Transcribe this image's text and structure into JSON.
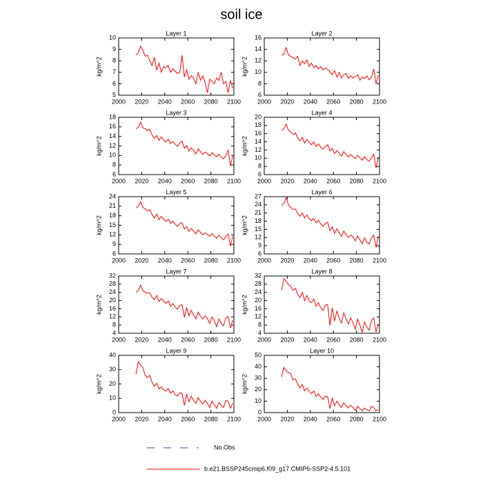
{
  "title": "soil ice",
  "legend": [
    {
      "name": "No Obs",
      "color": "#3b3b8f",
      "dashed": true
    },
    {
      "name": "b.e21.BSSP245cmip6.f09_g17.CMIP6-SSP2-4.5.101",
      "color": "#ff0000",
      "dashed": false
    }
  ],
  "chart_data": [
    {
      "type": "line",
      "title": "Layer 1",
      "y_label": "kg/m^2",
      "color": "#ff0000",
      "x": [
        2015,
        2017,
        2019,
        2021,
        2023,
        2025,
        2027,
        2029,
        2031,
        2033,
        2035,
        2037,
        2039,
        2041,
        2043,
        2045,
        2047,
        2049,
        2051,
        2053,
        2055,
        2057,
        2059,
        2061,
        2063,
        2065,
        2067,
        2069,
        2071,
        2073,
        2075,
        2077,
        2079,
        2081,
        2083,
        2085,
        2087,
        2089,
        2091,
        2093,
        2095,
        2097,
        2099
      ],
      "values": [
        8.5,
        8.7,
        9.3,
        8.9,
        8.4,
        8.5,
        8.0,
        7.6,
        8.3,
        7.2,
        7.8,
        7.0,
        7.5,
        7.4,
        7.6,
        7.0,
        7.3,
        7.1,
        6.9,
        7.0,
        8.5,
        6.6,
        7.2,
        6.4,
        6.7,
        6.5,
        6.0,
        7.0,
        6.3,
        6.7,
        6.1,
        5.2,
        6.4,
        6.2,
        6.0,
        6.5,
        6.3,
        7.0,
        6.0,
        6.2,
        5.2,
        6.3,
        5.6
      ],
      "xlim": [
        2000,
        2100
      ],
      "xticks": [
        2000,
        2020,
        2040,
        2060,
        2080,
        2100
      ],
      "ylim": [
        5,
        10
      ],
      "yticks": [
        5,
        6,
        7,
        8,
        9,
        10
      ]
    },
    {
      "type": "line",
      "title": "Layer 2",
      "y_label": "kg/m^2",
      "color": "#ff0000",
      "x": [
        2015,
        2017,
        2019,
        2021,
        2023,
        2025,
        2027,
        2029,
        2031,
        2033,
        2035,
        2037,
        2039,
        2041,
        2043,
        2045,
        2047,
        2049,
        2051,
        2053,
        2055,
        2057,
        2059,
        2061,
        2063,
        2065,
        2067,
        2069,
        2071,
        2073,
        2075,
        2077,
        2079,
        2081,
        2083,
        2085,
        2087,
        2089,
        2091,
        2093,
        2095,
        2097,
        2099
      ],
      "values": [
        13.0,
        13.2,
        14.3,
        13.0,
        12.8,
        12.5,
        12.3,
        12.8,
        11.2,
        12.0,
        11.5,
        12.2,
        11.0,
        11.6,
        10.8,
        11.2,
        10.6,
        11.0,
        10.4,
        10.8,
        10.5,
        10.1,
        9.6,
        10.3,
        9.2,
        10.0,
        9.0,
        9.6,
        9.8,
        8.9,
        9.4,
        9.0,
        9.3,
        9.6,
        8.6,
        9.2,
        8.9,
        9.4,
        8.7,
        9.1,
        10.6,
        8.0,
        9.5
      ],
      "xlim": [
        2000,
        2100
      ],
      "xticks": [
        2000,
        2020,
        2040,
        2060,
        2080,
        2100
      ],
      "ylim": [
        6,
        16
      ],
      "yticks": [
        6,
        8,
        10,
        12,
        14,
        16
      ]
    },
    {
      "type": "line",
      "title": "Layer 3",
      "y_label": "kg/m^2",
      "color": "#ff0000",
      "x": [
        2015,
        2017,
        2019,
        2021,
        2023,
        2025,
        2027,
        2029,
        2031,
        2033,
        2035,
        2037,
        2039,
        2041,
        2043,
        2045,
        2047,
        2049,
        2051,
        2053,
        2055,
        2057,
        2059,
        2061,
        2063,
        2065,
        2067,
        2069,
        2071,
        2073,
        2075,
        2077,
        2079,
        2081,
        2083,
        2085,
        2087,
        2089,
        2091,
        2093,
        2095,
        2097,
        2099
      ],
      "values": [
        15.6,
        15.9,
        17.0,
        15.8,
        15.6,
        15.2,
        15.5,
        14.3,
        13.6,
        14.2,
        13.2,
        13.9,
        13.3,
        12.8,
        13.4,
        12.5,
        12.9,
        12.4,
        11.9,
        12.6,
        13.0,
        11.5,
        12.1,
        10.9,
        11.6,
        11.1,
        10.3,
        11.4,
        10.8,
        10.2,
        10.7,
        10.4,
        9.9,
        10.6,
        10.1,
        9.7,
        10.3,
        9.6,
        9.3,
        9.9,
        11.2,
        7.8,
        10.0
      ],
      "xlim": [
        2000,
        2100
      ],
      "xticks": [
        2000,
        2020,
        2040,
        2060,
        2080,
        2100
      ],
      "ylim": [
        6,
        18
      ],
      "yticks": [
        6,
        8,
        10,
        12,
        14,
        16,
        18
      ]
    },
    {
      "type": "line",
      "title": "Layer 4",
      "y_label": "kg/m^2",
      "color": "#ff0000",
      "x": [
        2015,
        2017,
        2019,
        2021,
        2023,
        2025,
        2027,
        2029,
        2031,
        2033,
        2035,
        2037,
        2039,
        2041,
        2043,
        2045,
        2047,
        2049,
        2051,
        2053,
        2055,
        2057,
        2059,
        2061,
        2063,
        2065,
        2067,
        2069,
        2071,
        2073,
        2075,
        2077,
        2079,
        2081,
        2083,
        2085,
        2087,
        2089,
        2091,
        2093,
        2095,
        2097,
        2099
      ],
      "values": [
        16.8,
        17.2,
        18.3,
        16.8,
        16.4,
        15.8,
        16.2,
        15.0,
        14.2,
        15.1,
        13.7,
        14.6,
        13.9,
        13.3,
        14.0,
        12.9,
        13.5,
        12.7,
        12.2,
        12.9,
        13.3,
        11.8,
        12.4,
        11.1,
        11.9,
        11.2,
        10.5,
        11.6,
        10.9,
        10.3,
        10.9,
        10.4,
        9.9,
        10.7,
        10.1,
        9.5,
        10.4,
        9.7,
        9.2,
        10.1,
        11.0,
        7.6,
        10.3
      ],
      "xlim": [
        2000,
        2100
      ],
      "xticks": [
        2000,
        2020,
        2040,
        2060,
        2080,
        2100
      ],
      "ylim": [
        6,
        20
      ],
      "yticks": [
        6,
        8,
        10,
        12,
        14,
        16,
        18,
        20
      ]
    },
    {
      "type": "line",
      "title": "Layer 5",
      "y_label": "kg/m^2",
      "color": "#ff0000",
      "x": [
        2015,
        2017,
        2019,
        2021,
        2023,
        2025,
        2027,
        2029,
        2031,
        2033,
        2035,
        2037,
        2039,
        2041,
        2043,
        2045,
        2047,
        2049,
        2051,
        2053,
        2055,
        2057,
        2059,
        2061,
        2063,
        2065,
        2067,
        2069,
        2071,
        2073,
        2075,
        2077,
        2079,
        2081,
        2083,
        2085,
        2087,
        2089,
        2091,
        2093,
        2095,
        2097,
        2099
      ],
      "values": [
        20.5,
        21.0,
        22.4,
        20.6,
        20.2,
        19.5,
        19.9,
        18.4,
        17.3,
        18.5,
        16.8,
        17.8,
        16.9,
        16.2,
        16.9,
        15.6,
        16.3,
        15.4,
        14.7,
        15.5,
        15.8,
        13.8,
        14.6,
        13.1,
        14.0,
        13.2,
        12.3,
        13.6,
        12.8,
        12.0,
        12.6,
        12.1,
        11.5,
        12.4,
        11.6,
        10.9,
        11.9,
        11.0,
        10.4,
        11.4,
        12.3,
        8.4,
        11.6
      ],
      "xlim": [
        2000,
        2100
      ],
      "xticks": [
        2000,
        2020,
        2040,
        2060,
        2080,
        2100
      ],
      "ylim": [
        6,
        24
      ],
      "yticks": [
        6,
        9,
        12,
        15,
        18,
        21,
        24
      ]
    },
    {
      "type": "line",
      "title": "Layer 6",
      "y_label": "kg/m^2",
      "color": "#ff0000",
      "x": [
        2015,
        2017,
        2019,
        2021,
        2023,
        2025,
        2027,
        2029,
        2031,
        2033,
        2035,
        2037,
        2039,
        2041,
        2043,
        2045,
        2047,
        2049,
        2051,
        2053,
        2055,
        2057,
        2059,
        2061,
        2063,
        2065,
        2067,
        2069,
        2071,
        2073,
        2075,
        2077,
        2079,
        2081,
        2083,
        2085,
        2087,
        2089,
        2091,
        2093,
        2095,
        2097,
        2099
      ],
      "values": [
        23.8,
        24.5,
        26.6,
        24.0,
        23.0,
        22.3,
        22.5,
        20.8,
        19.8,
        21.0,
        19.2,
        20.3,
        18.9,
        18.2,
        19.0,
        17.4,
        18.4,
        17.0,
        16.1,
        17.2,
        17.6,
        14.5,
        16.0,
        13.6,
        15.2,
        13.8,
        12.4,
        14.4,
        13.1,
        12.0,
        12.9,
        12.2,
        10.8,
        12.6,
        11.2,
        9.7,
        11.9,
        10.3,
        9.6,
        11.8,
        12.9,
        8.4,
        12.5
      ],
      "xlim": [
        2000,
        2100
      ],
      "xticks": [
        2000,
        2020,
        2040,
        2060,
        2080,
        2100
      ],
      "ylim": [
        6,
        27
      ],
      "yticks": [
        6,
        9,
        12,
        15,
        18,
        21,
        24,
        27
      ]
    },
    {
      "type": "line",
      "title": "Layer 7",
      "y_label": "kg/m^2",
      "color": "#ff0000",
      "x": [
        2015,
        2017,
        2019,
        2021,
        2023,
        2025,
        2027,
        2029,
        2031,
        2033,
        2035,
        2037,
        2039,
        2041,
        2043,
        2045,
        2047,
        2049,
        2051,
        2053,
        2055,
        2057,
        2059,
        2061,
        2063,
        2065,
        2067,
        2069,
        2071,
        2073,
        2075,
        2077,
        2079,
        2081,
        2083,
        2085,
        2087,
        2089,
        2091,
        2093,
        2095,
        2097,
        2099
      ],
      "values": [
        24.0,
        25.0,
        27.5,
        24.8,
        24.0,
        23.5,
        23.8,
        21.5,
        20.5,
        22.5,
        19.5,
        21.0,
        19.8,
        18.6,
        19.8,
        17.2,
        18.5,
        16.8,
        15.8,
        17.6,
        18.0,
        11.8,
        16.5,
        12.5,
        15.2,
        13.0,
        11.0,
        14.3,
        12.4,
        11.0,
        12.5,
        11.2,
        8.8,
        12.0,
        10.2,
        7.2,
        11.0,
        9.0,
        7.6,
        11.5,
        12.2,
        6.5,
        10.5
      ],
      "xlim": [
        2000,
        2100
      ],
      "xticks": [
        2000,
        2020,
        2040,
        2060,
        2080,
        2100
      ],
      "ylim": [
        4,
        32
      ],
      "yticks": [
        4,
        8,
        12,
        16,
        20,
        24,
        28,
        32
      ]
    },
    {
      "type": "line",
      "title": "Layer 8",
      "y_label": "kg/m^2",
      "color": "#ff0000",
      "x": [
        2015,
        2017,
        2019,
        2021,
        2023,
        2025,
        2027,
        2029,
        2031,
        2033,
        2035,
        2037,
        2039,
        2041,
        2043,
        2045,
        2047,
        2049,
        2051,
        2053,
        2055,
        2057,
        2059,
        2061,
        2063,
        2065,
        2067,
        2069,
        2071,
        2073,
        2075,
        2077,
        2079,
        2081,
        2083,
        2085,
        2087,
        2089,
        2091,
        2093,
        2095,
        2097,
        2099
      ],
      "values": [
        25.0,
        30.8,
        29.5,
        27.8,
        27.0,
        25.0,
        26.0,
        23.0,
        21.5,
        24.0,
        20.0,
        22.5,
        19.8,
        19.0,
        20.8,
        17.2,
        19.0,
        16.5,
        15.0,
        17.8,
        18.0,
        7.8,
        16.5,
        10.0,
        14.8,
        11.5,
        9.0,
        14.0,
        11.0,
        8.5,
        11.5,
        9.2,
        6.0,
        11.0,
        8.0,
        4.5,
        9.5,
        7.0,
        5.5,
        10.0,
        11.5,
        4.5,
        8.5
      ],
      "xlim": [
        2000,
        2100
      ],
      "xticks": [
        2000,
        2020,
        2040,
        2060,
        2080,
        2100
      ],
      "ylim": [
        4,
        32
      ],
      "yticks": [
        4,
        8,
        12,
        16,
        20,
        24,
        28,
        32
      ]
    },
    {
      "type": "line",
      "title": "Layer 9",
      "y_label": "kg/m^2",
      "color": "#ff0000",
      "x": [
        2015,
        2017,
        2019,
        2021,
        2023,
        2025,
        2027,
        2029,
        2031,
        2033,
        2035,
        2037,
        2039,
        2041,
        2043,
        2045,
        2047,
        2049,
        2051,
        2053,
        2055,
        2057,
        2059,
        2061,
        2063,
        2065,
        2067,
        2069,
        2071,
        2073,
        2075,
        2077,
        2079,
        2081,
        2083,
        2085,
        2087,
        2089,
        2091,
        2093,
        2095,
        2097,
        2099
      ],
      "values": [
        27.0,
        35.5,
        33.0,
        31.5,
        26.0,
        24.5,
        26.0,
        21.0,
        18.5,
        20.5,
        16.5,
        18.0,
        16.0,
        15.0,
        16.8,
        13.5,
        15.2,
        12.5,
        11.5,
        14.0,
        13.5,
        5.0,
        13.0,
        7.5,
        11.5,
        8.5,
        6.5,
        10.5,
        8.0,
        6.0,
        8.5,
        6.5,
        3.5,
        8.0,
        5.5,
        3.0,
        7.0,
        5.0,
        3.5,
        8.5,
        8.0,
        3.0,
        6.5
      ],
      "xlim": [
        2000,
        2100
      ],
      "xticks": [
        2000,
        2020,
        2040,
        2060,
        2080,
        2100
      ],
      "ylim": [
        0,
        40
      ],
      "yticks": [
        0,
        10,
        20,
        30,
        40
      ]
    },
    {
      "type": "line",
      "title": "Layer 10",
      "y_label": "kg/m^2",
      "color": "#ff0000",
      "x": [
        2015,
        2017,
        2019,
        2021,
        2023,
        2025,
        2027,
        2029,
        2031,
        2033,
        2035,
        2037,
        2039,
        2041,
        2043,
        2045,
        2047,
        2049,
        2051,
        2053,
        2055,
        2057,
        2059,
        2061,
        2063,
        2065,
        2067,
        2069,
        2071,
        2073,
        2075,
        2077,
        2079,
        2081,
        2083,
        2085,
        2087,
        2089,
        2091,
        2093,
        2095,
        2097,
        2099
      ],
      "values": [
        31.0,
        39.5,
        36.5,
        35.0,
        34.0,
        28.5,
        29.5,
        25.0,
        21.5,
        24.5,
        19.0,
        21.5,
        18.5,
        16.5,
        19.0,
        14.0,
        16.5,
        13.5,
        11.5,
        14.5,
        14.0,
        3.5,
        12.5,
        6.0,
        10.0,
        7.0,
        4.5,
        8.5,
        6.0,
        4.0,
        6.5,
        4.5,
        2.0,
        5.5,
        3.5,
        1.5,
        4.0,
        2.5,
        1.5,
        5.5,
        4.5,
        1.5,
        3.0
      ],
      "xlim": [
        2000,
        2100
      ],
      "xticks": [
        2000,
        2020,
        2040,
        2060,
        2080,
        2100
      ],
      "ylim": [
        0,
        50
      ],
      "yticks": [
        0,
        10,
        20,
        30,
        40,
        50
      ]
    }
  ]
}
